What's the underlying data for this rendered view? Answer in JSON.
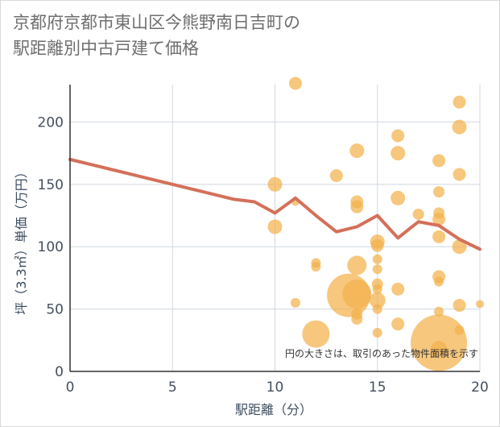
{
  "chart_data": {
    "type": "scatter",
    "title_lines": [
      "京都府京都市東山区今熊野南日吉町の",
      "駅距離別中古戸建て価格"
    ],
    "xlabel": "駅距離（分）",
    "ylabel": "坪（3.3㎡）単価（万円）",
    "xlim": [
      0,
      20
    ],
    "ylim": [
      0,
      230
    ],
    "xticks": [
      0,
      5,
      10,
      15,
      20
    ],
    "yticks": [
      0,
      50,
      100,
      150,
      200
    ],
    "grid": true,
    "annotation": "円の大きさは、取引のあった物件面積を示す",
    "colors": {
      "bubble": "#f3b24b",
      "line": "#d4705a",
      "grid": "#cfd8e0",
      "axis": "#333333"
    },
    "points": [
      {
        "x": 11,
        "y": 231,
        "r": 8
      },
      {
        "x": 19,
        "y": 216,
        "r": 8
      },
      {
        "x": 19,
        "y": 196,
        "r": 9
      },
      {
        "x": 16,
        "y": 189,
        "r": 8
      },
      {
        "x": 14,
        "y": 177,
        "r": 9
      },
      {
        "x": 16,
        "y": 175,
        "r": 9
      },
      {
        "x": 18,
        "y": 169,
        "r": 8
      },
      {
        "x": 13,
        "y": 157,
        "r": 8
      },
      {
        "x": 19,
        "y": 158,
        "r": 8
      },
      {
        "x": 10,
        "y": 150,
        "r": 9
      },
      {
        "x": 18,
        "y": 144,
        "r": 7
      },
      {
        "x": 16,
        "y": 139,
        "r": 9
      },
      {
        "x": 14,
        "y": 136,
        "r": 8
      },
      {
        "x": 11,
        "y": 136,
        "r": 5
      },
      {
        "x": 14,
        "y": 132,
        "r": 8
      },
      {
        "x": 17,
        "y": 126,
        "r": 7
      },
      {
        "x": 18,
        "y": 127,
        "r": 7
      },
      {
        "x": 18,
        "y": 122,
        "r": 8
      },
      {
        "x": 10,
        "y": 116,
        "r": 9
      },
      {
        "x": 18,
        "y": 108,
        "r": 8
      },
      {
        "x": 15,
        "y": 104,
        "r": 9
      },
      {
        "x": 15,
        "y": 101,
        "r": 8
      },
      {
        "x": 19,
        "y": 100,
        "r": 9
      },
      {
        "x": 15,
        "y": 90,
        "r": 6
      },
      {
        "x": 12,
        "y": 87,
        "r": 6
      },
      {
        "x": 14,
        "y": 85,
        "r": 12
      },
      {
        "x": 12,
        "y": 84,
        "r": 6
      },
      {
        "x": 15,
        "y": 82,
        "r": 6
      },
      {
        "x": 18,
        "y": 76,
        "r": 8
      },
      {
        "x": 18,
        "y": 72,
        "r": 6
      },
      {
        "x": 15,
        "y": 70,
        "r": 7
      },
      {
        "x": 16,
        "y": 66,
        "r": 8
      },
      {
        "x": 15,
        "y": 66,
        "r": 6
      },
      {
        "x": 13.6,
        "y": 61,
        "r": 27
      },
      {
        "x": 14,
        "y": 62,
        "r": 18
      },
      {
        "x": 15,
        "y": 57,
        "r": 10
      },
      {
        "x": 11,
        "y": 55,
        "r": 6
      },
      {
        "x": 20,
        "y": 54,
        "r": 5
      },
      {
        "x": 19,
        "y": 53,
        "r": 8
      },
      {
        "x": 15,
        "y": 50,
        "r": 6
      },
      {
        "x": 18,
        "y": 48,
        "r": 6
      },
      {
        "x": 14,
        "y": 46,
        "r": 7
      },
      {
        "x": 14,
        "y": 42,
        "r": 7
      },
      {
        "x": 16,
        "y": 38,
        "r": 8
      },
      {
        "x": 19,
        "y": 33,
        "r": 6
      },
      {
        "x": 15,
        "y": 31,
        "r": 6
      },
      {
        "x": 12,
        "y": 30,
        "r": 17
      },
      {
        "x": 18,
        "y": 23,
        "r": 35
      },
      {
        "x": 18,
        "y": 18,
        "r": 10
      }
    ],
    "series": [
      {
        "name": "trend",
        "x": [
          0,
          1,
          2,
          3,
          4,
          5,
          6,
          7,
          8,
          9,
          10,
          11,
          12,
          13,
          14,
          15,
          16,
          17,
          18,
          19,
          20
        ],
        "y": [
          170,
          166,
          162,
          158,
          154,
          150,
          146,
          142,
          138,
          136,
          127,
          139,
          125,
          112,
          116,
          125,
          107,
          120,
          117,
          106,
          98
        ]
      }
    ]
  }
}
